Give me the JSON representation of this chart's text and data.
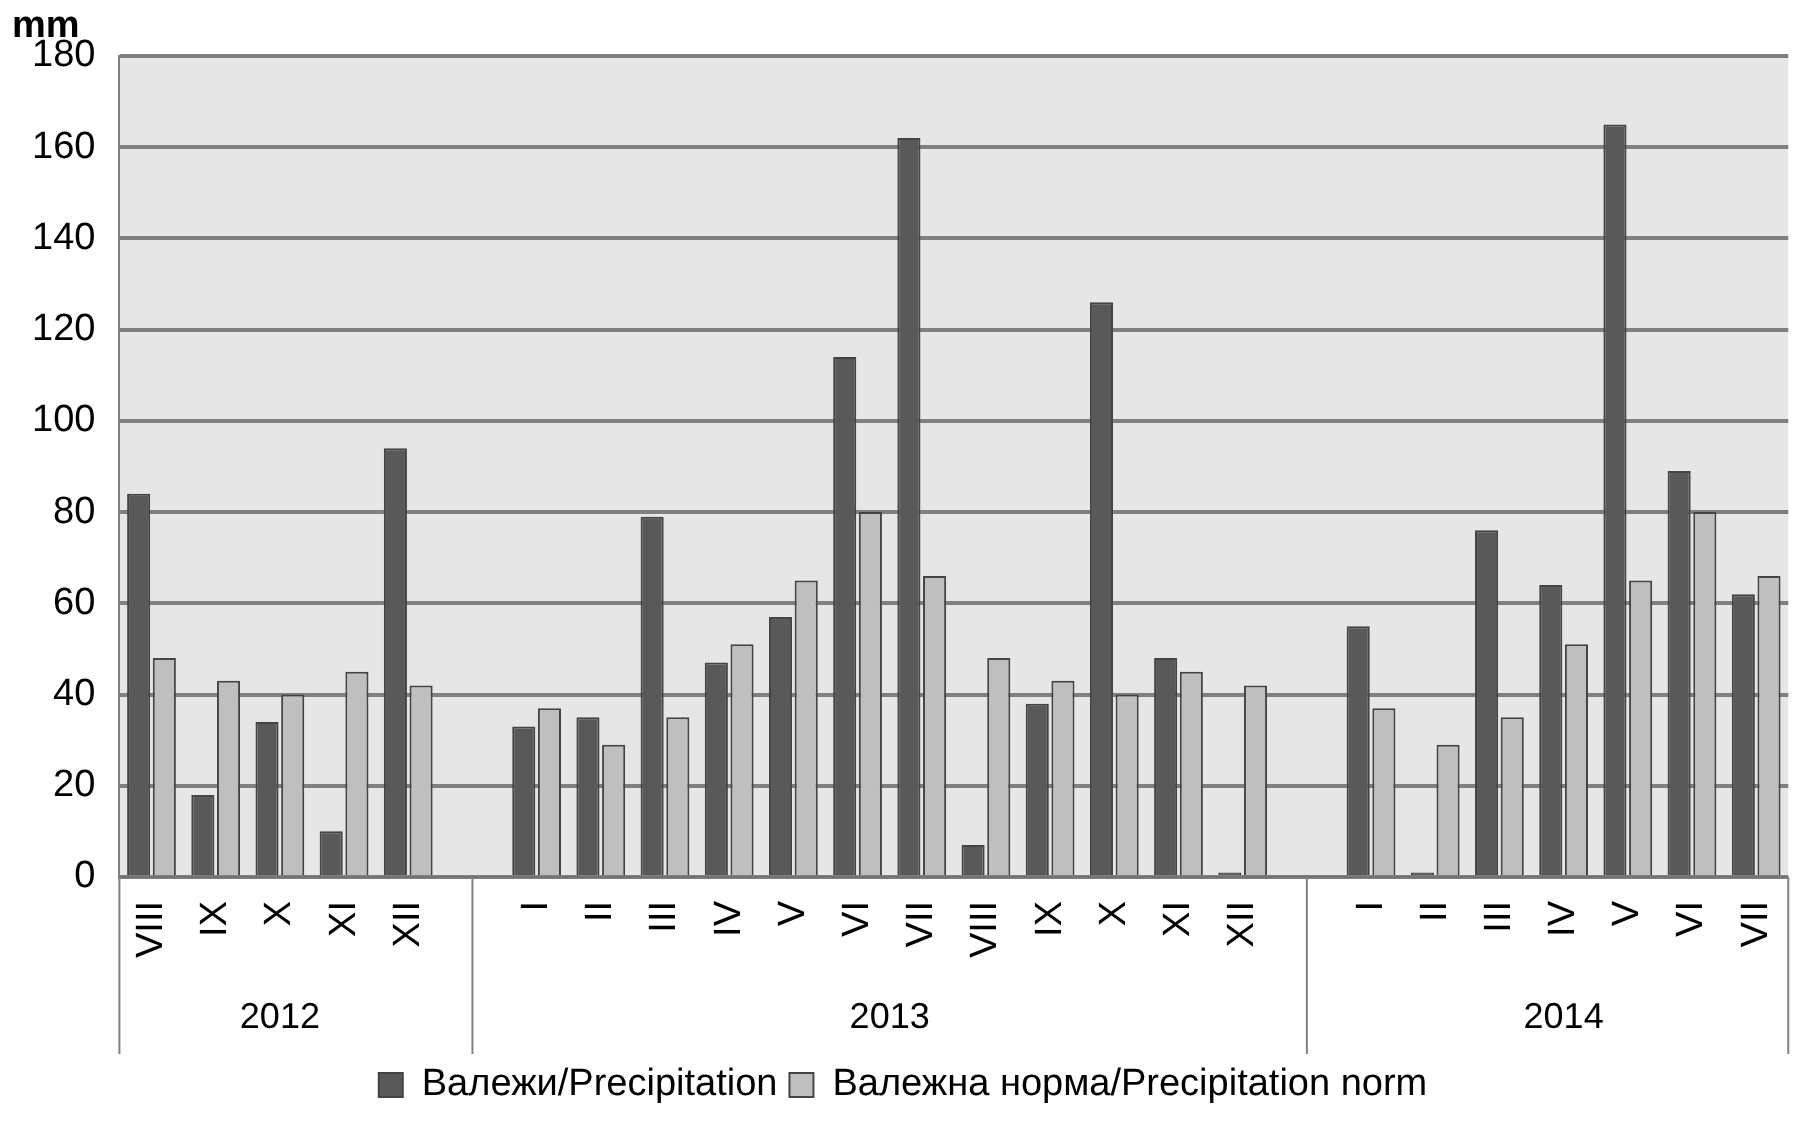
{
  "chart_data": {
    "type": "bar",
    "ylabel": "mm",
    "categories": [
      "VIII",
      "IX",
      "X",
      "XI",
      "XII",
      null,
      "I",
      "II",
      "III",
      "IV",
      "V",
      "VI",
      "VII",
      "VIII",
      "IX",
      "X",
      "XI",
      "XII",
      null,
      "I",
      "II",
      "III",
      "IV",
      "V",
      "VI",
      "VII"
    ],
    "series": [
      {
        "name": "Валежи/Precipitation",
        "color": "#595959",
        "values": [
          84,
          18,
          34,
          10,
          94,
          null,
          33,
          35,
          79,
          47,
          57,
          114,
          162,
          7,
          38,
          126,
          48,
          1,
          null,
          55,
          1,
          76,
          64,
          165,
          89,
          62
        ]
      },
      {
        "name": "Валежна норма/Precipitation norm",
        "color": "#bfbfbf",
        "values": [
          48,
          43,
          40,
          45,
          42,
          null,
          37,
          29,
          35,
          51,
          65,
          80,
          66,
          48,
          43,
          40,
          45,
          42,
          null,
          37,
          29,
          35,
          51,
          65,
          80,
          66
        ]
      }
    ],
    "annotations": [
      "2012",
      "2013",
      "2014"
    ],
    "ylim": [
      0,
      180
    ],
    "yticks": [
      0,
      20,
      40,
      60,
      80,
      100,
      120,
      140,
      160,
      180
    ],
    "grid": "y",
    "legend": "bottom"
  }
}
